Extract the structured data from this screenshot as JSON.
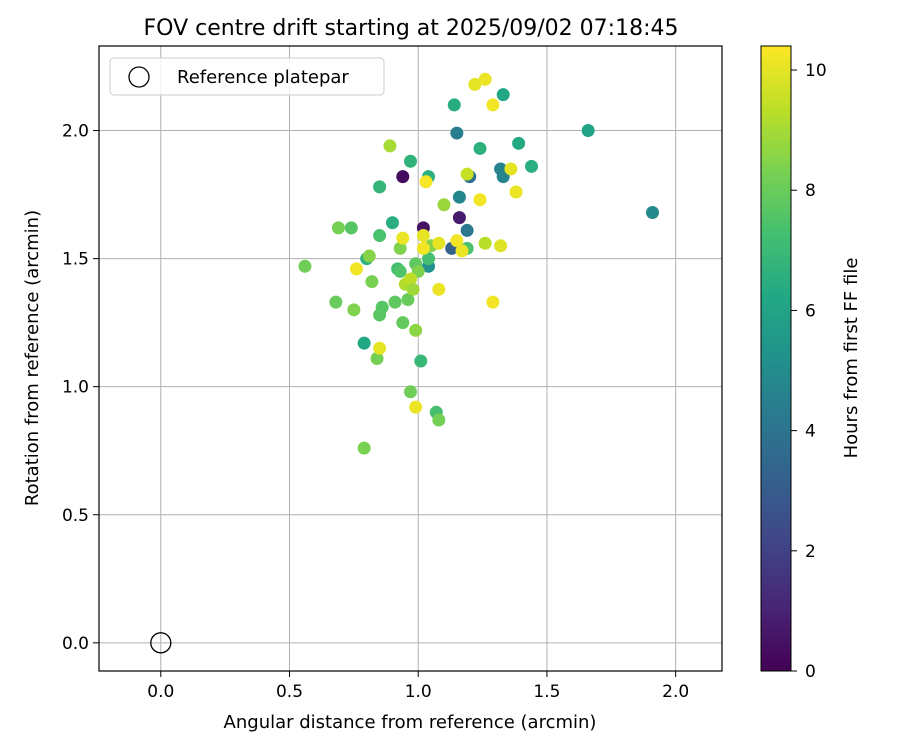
{
  "chart_data": {
    "type": "scatter",
    "title": "FOV centre drift starting at 2025/09/02 07:18:45",
    "xlabel": "Angular distance from reference (arcmin)",
    "ylabel": "Rotation from reference (arcmin)",
    "colorbar_label": "Hours from first FF file",
    "colormap": "viridis",
    "xlim": [
      -0.24,
      2.18
    ],
    "ylim": [
      -0.11,
      2.33
    ],
    "xticks": [
      0.0,
      0.5,
      1.0,
      1.5,
      2.0
    ],
    "xtick_labels": [
      "0.0",
      "0.5",
      "1.0",
      "1.5",
      "2.0"
    ],
    "yticks": [
      0.0,
      0.5,
      1.0,
      1.5,
      2.0
    ],
    "ytick_labels": [
      "0.0",
      "0.5",
      "1.0",
      "1.5",
      "2.0"
    ],
    "colorbar_range": [
      0,
      10.4
    ],
    "colorbar_ticks": [
      0,
      2,
      4,
      6,
      8,
      10
    ],
    "colorbar_tick_labels": [
      "0",
      "2",
      "4",
      "6",
      "8",
      "10"
    ],
    "grid": true,
    "legend": {
      "position": "top-left",
      "entries": [
        "Reference platepar"
      ]
    },
    "reference_point": {
      "name": "Reference platepar",
      "x": 0.0,
      "y": 0.0,
      "marker": "hollow-circle",
      "color": "#000000"
    },
    "points": [
      {
        "x": 0.94,
        "y": 1.82,
        "c": 0.3
      },
      {
        "x": 1.02,
        "y": 1.62,
        "c": 0.5
      },
      {
        "x": 1.16,
        "y": 1.66,
        "c": 0.8
      },
      {
        "x": 1.13,
        "y": 1.54,
        "c": 3.3
      },
      {
        "x": 1.19,
        "y": 1.61,
        "c": 4.2
      },
      {
        "x": 1.2,
        "y": 1.82,
        "c": 3.8
      },
      {
        "x": 1.15,
        "y": 1.99,
        "c": 4.4
      },
      {
        "x": 1.33,
        "y": 1.82,
        "c": 4.7
      },
      {
        "x": 1.32,
        "y": 1.85,
        "c": 4.6
      },
      {
        "x": 1.16,
        "y": 1.74,
        "c": 4.8
      },
      {
        "x": 1.04,
        "y": 1.47,
        "c": 5.2
      },
      {
        "x": 1.91,
        "y": 1.68,
        "c": 4.9
      },
      {
        "x": 1.66,
        "y": 2.0,
        "c": 6.0
      },
      {
        "x": 1.33,
        "y": 2.14,
        "c": 6.2
      },
      {
        "x": 1.14,
        "y": 2.1,
        "c": 6.4
      },
      {
        "x": 1.24,
        "y": 1.93,
        "c": 6.6
      },
      {
        "x": 1.39,
        "y": 1.95,
        "c": 6.3
      },
      {
        "x": 1.44,
        "y": 1.86,
        "c": 6.5
      },
      {
        "x": 0.97,
        "y": 1.88,
        "c": 6.7
      },
      {
        "x": 1.04,
        "y": 1.82,
        "c": 6.6
      },
      {
        "x": 0.85,
        "y": 1.78,
        "c": 6.8
      },
      {
        "x": 0.9,
        "y": 1.64,
        "c": 6.5
      },
      {
        "x": 0.79,
        "y": 1.17,
        "c": 6.2
      },
      {
        "x": 0.8,
        "y": 1.5,
        "c": 6.6
      },
      {
        "x": 1.01,
        "y": 1.1,
        "c": 6.9
      },
      {
        "x": 1.07,
        "y": 0.9,
        "c": 7.3
      },
      {
        "x": 0.74,
        "y": 1.62,
        "c": 7.6
      },
      {
        "x": 0.85,
        "y": 1.59,
        "c": 7.4
      },
      {
        "x": 0.92,
        "y": 1.46,
        "c": 7.2
      },
      {
        "x": 0.93,
        "y": 1.45,
        "c": 7.5
      },
      {
        "x": 0.99,
        "y": 1.48,
        "c": 7.8
      },
      {
        "x": 1.04,
        "y": 1.5,
        "c": 7.3
      },
      {
        "x": 1.19,
        "y": 1.54,
        "c": 7.4
      },
      {
        "x": 0.86,
        "y": 1.31,
        "c": 7.6
      },
      {
        "x": 0.85,
        "y": 1.28,
        "c": 7.7
      },
      {
        "x": 0.91,
        "y": 1.33,
        "c": 7.8
      },
      {
        "x": 0.94,
        "y": 1.25,
        "c": 7.9
      },
      {
        "x": 0.96,
        "y": 1.34,
        "c": 8.0
      },
      {
        "x": 0.97,
        "y": 0.98,
        "c": 8.1
      },
      {
        "x": 1.08,
        "y": 0.87,
        "c": 8.2
      },
      {
        "x": 0.79,
        "y": 0.76,
        "c": 8.3
      },
      {
        "x": 0.56,
        "y": 1.47,
        "c": 8.1
      },
      {
        "x": 0.68,
        "y": 1.33,
        "c": 8.0
      },
      {
        "x": 0.69,
        "y": 1.62,
        "c": 8.2
      },
      {
        "x": 0.75,
        "y": 1.3,
        "c": 8.4
      },
      {
        "x": 0.84,
        "y": 1.11,
        "c": 8.2
      },
      {
        "x": 0.82,
        "y": 1.41,
        "c": 8.3
      },
      {
        "x": 0.81,
        "y": 1.51,
        "c": 8.5
      },
      {
        "x": 0.93,
        "y": 1.54,
        "c": 8.4
      },
      {
        "x": 1.0,
        "y": 1.45,
        "c": 8.4
      },
      {
        "x": 0.99,
        "y": 1.22,
        "c": 8.6
      },
      {
        "x": 1.05,
        "y": 1.55,
        "c": 8.5
      },
      {
        "x": 1.1,
        "y": 1.71,
        "c": 8.8
      },
      {
        "x": 0.89,
        "y": 1.94,
        "c": 9.0
      },
      {
        "x": 0.95,
        "y": 1.4,
        "c": 9.2
      },
      {
        "x": 0.97,
        "y": 1.42,
        "c": 9.4
      },
      {
        "x": 0.98,
        "y": 1.38,
        "c": 8.9
      },
      {
        "x": 1.26,
        "y": 1.56,
        "c": 9.3
      },
      {
        "x": 1.32,
        "y": 1.55,
        "c": 9.9
      },
      {
        "x": 1.19,
        "y": 1.83,
        "c": 9.5
      },
      {
        "x": 1.22,
        "y": 2.18,
        "c": 10.0
      },
      {
        "x": 1.26,
        "y": 2.2,
        "c": 10.1
      },
      {
        "x": 1.29,
        "y": 2.1,
        "c": 10.2
      },
      {
        "x": 1.36,
        "y": 1.85,
        "c": 10.0
      },
      {
        "x": 1.38,
        "y": 1.76,
        "c": 10.1
      },
      {
        "x": 1.24,
        "y": 1.73,
        "c": 10.2
      },
      {
        "x": 1.03,
        "y": 1.8,
        "c": 10.3
      },
      {
        "x": 0.94,
        "y": 1.58,
        "c": 10.1
      },
      {
        "x": 1.02,
        "y": 1.59,
        "c": 10.0
      },
      {
        "x": 1.02,
        "y": 1.54,
        "c": 10.2
      },
      {
        "x": 1.08,
        "y": 1.56,
        "c": 10.0
      },
      {
        "x": 1.15,
        "y": 1.57,
        "c": 10.2
      },
      {
        "x": 1.17,
        "y": 1.53,
        "c": 10.1
      },
      {
        "x": 0.76,
        "y": 1.46,
        "c": 10.2
      },
      {
        "x": 1.08,
        "y": 1.38,
        "c": 10.1
      },
      {
        "x": 1.29,
        "y": 1.33,
        "c": 10.2
      },
      {
        "x": 0.85,
        "y": 1.15,
        "c": 10.0
      },
      {
        "x": 0.99,
        "y": 0.92,
        "c": 10.1
      }
    ]
  }
}
